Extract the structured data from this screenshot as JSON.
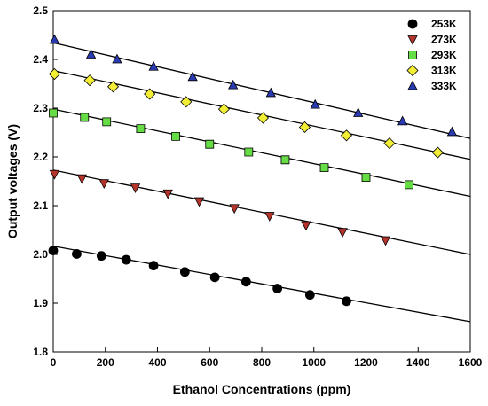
{
  "chart_data": {
    "type": "scatter",
    "xlabel": "Ethanol Concentrations (ppm)",
    "ylabel": "Output voltages (V)",
    "xlim": [
      0,
      1600
    ],
    "ylim": [
      1.8,
      2.5
    ],
    "xticks": [
      "0",
      "200",
      "400",
      "600",
      "800",
      "1000",
      "1200",
      "1400",
      "1600"
    ],
    "yticks": [
      "1.8",
      "1.9",
      "2.0",
      "2.1",
      "2.2",
      "2.3",
      "2.4",
      "2.5"
    ],
    "legend_position": "top-right",
    "grid": false,
    "series": [
      {
        "name": "253K",
        "marker": "circle",
        "color": "#000000",
        "x": [
          0,
          90,
          185,
          280,
          385,
          505,
          620,
          740,
          860,
          985,
          1125
        ],
        "y": [
          2.008,
          2.001,
          1.997,
          1.989,
          1.977,
          1.964,
          1.953,
          1.944,
          1.93,
          1.917,
          1.904
        ],
        "fit": {
          "x": [
            0,
            1600
          ],
          "y": [
            2.017,
            1.862
          ]
        }
      },
      {
        "name": "273K",
        "marker": "triangle-down",
        "color": "#b5342c",
        "x": [
          5,
          110,
          195,
          315,
          440,
          560,
          695,
          830,
          970,
          1110,
          1275
        ],
        "y": [
          2.165,
          2.156,
          2.146,
          2.137,
          2.125,
          2.109,
          2.095,
          2.079,
          2.06,
          2.046,
          2.029
        ],
        "fit": {
          "x": [
            0,
            1600
          ],
          "y": [
            2.173,
            2.0
          ]
        }
      },
      {
        "name": "293K",
        "marker": "square",
        "color": "#66dd44",
        "x": [
          0,
          120,
          205,
          335,
          470,
          600,
          750,
          890,
          1040,
          1200,
          1365
        ],
        "y": [
          2.29,
          2.281,
          2.272,
          2.258,
          2.242,
          2.226,
          2.21,
          2.194,
          2.178,
          2.158,
          2.143
        ],
        "fit": {
          "x": [
            0,
            1600
          ],
          "y": [
            2.298,
            2.119
          ]
        }
      },
      {
        "name": "313K",
        "marker": "diamond",
        "color": "#f2ee36",
        "x": [
          5,
          140,
          230,
          370,
          510,
          655,
          805,
          965,
          1125,
          1290,
          1475
        ],
        "y": [
          2.37,
          2.357,
          2.344,
          2.329,
          2.313,
          2.298,
          2.28,
          2.261,
          2.244,
          2.228,
          2.209
        ],
        "fit": {
          "x": [
            0,
            1600
          ],
          "y": [
            2.377,
            2.195
          ]
        }
      },
      {
        "name": "333K",
        "marker": "triangle-up",
        "color": "#2a3ab0",
        "x": [
          5,
          145,
          245,
          385,
          535,
          690,
          835,
          1005,
          1170,
          1340,
          1530
        ],
        "y": [
          2.44,
          2.41,
          2.4,
          2.385,
          2.364,
          2.347,
          2.331,
          2.307,
          2.29,
          2.273,
          2.251
        ],
        "fit": {
          "x": [
            0,
            1600
          ],
          "y": [
            2.434,
            2.238
          ]
        }
      }
    ]
  }
}
